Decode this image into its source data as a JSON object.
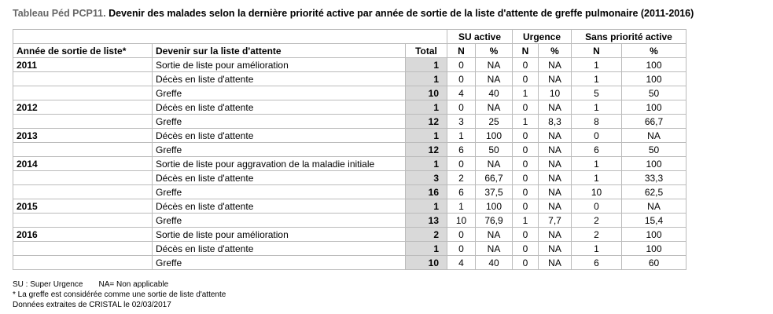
{
  "title": {
    "label": "Tableau Péd PCP11.",
    "text": "Devenir des malades selon la dernière priorité active par année de sortie de la liste d'attente de greffe pulmonaire (2011-2016)"
  },
  "table": {
    "groups": [
      "SU active",
      "Urgence",
      "Sans priorité active"
    ],
    "headers": [
      "Année de sortie de liste*",
      "Devenir sur la liste d'attente",
      "Total",
      "N",
      "%",
      "N",
      "%",
      "N",
      "%"
    ],
    "rows": [
      {
        "year": "2011",
        "outcome": "Sortie de liste pour amélioration",
        "cells": [
          "1",
          "0",
          "NA",
          "0",
          "NA",
          "1",
          "100"
        ]
      },
      {
        "outcome": "Décès en liste d'attente",
        "cells": [
          "1",
          "0",
          "NA",
          "0",
          "NA",
          "1",
          "100"
        ]
      },
      {
        "outcome": "Greffe",
        "cells": [
          "10",
          "4",
          "40",
          "1",
          "10",
          "5",
          "50"
        ]
      },
      {
        "year": "2012",
        "outcome": "Décès en liste d'attente",
        "cells": [
          "1",
          "0",
          "NA",
          "0",
          "NA",
          "1",
          "100"
        ]
      },
      {
        "outcome": "Greffe",
        "cells": [
          "12",
          "3",
          "25",
          "1",
          "8,3",
          "8",
          "66,7"
        ]
      },
      {
        "year": "2013",
        "outcome": "Décès en liste d'attente",
        "cells": [
          "1",
          "1",
          "100",
          "0",
          "NA",
          "0",
          "NA"
        ]
      },
      {
        "outcome": "Greffe",
        "cells": [
          "12",
          "6",
          "50",
          "0",
          "NA",
          "6",
          "50"
        ]
      },
      {
        "year": "2014",
        "outcome": "Sortie de liste pour aggravation de la maladie initiale",
        "cells": [
          "1",
          "0",
          "NA",
          "0",
          "NA",
          "1",
          "100"
        ]
      },
      {
        "outcome": "Décès en liste d'attente",
        "cells": [
          "3",
          "2",
          "66,7",
          "0",
          "NA",
          "1",
          "33,3"
        ]
      },
      {
        "outcome": "Greffe",
        "cells": [
          "16",
          "6",
          "37,5",
          "0",
          "NA",
          "10",
          "62,5"
        ]
      },
      {
        "year": "2015",
        "outcome": "Décès en liste d'attente",
        "cells": [
          "1",
          "1",
          "100",
          "0",
          "NA",
          "0",
          "NA"
        ]
      },
      {
        "outcome": "Greffe",
        "cells": [
          "13",
          "10",
          "76,9",
          "1",
          "7,7",
          "2",
          "15,4"
        ]
      },
      {
        "year": "2016",
        "outcome": "Sortie de liste pour amélioration",
        "cells": [
          "2",
          "0",
          "NA",
          "0",
          "NA",
          "2",
          "100"
        ]
      },
      {
        "outcome": "Décès en liste d'attente",
        "cells": [
          "1",
          "0",
          "NA",
          "0",
          "NA",
          "1",
          "100"
        ]
      },
      {
        "outcome": "Greffe",
        "cells": [
          "10",
          "4",
          "40",
          "0",
          "NA",
          "6",
          "60"
        ]
      }
    ]
  },
  "footnotes": {
    "abbrev_su": "SU : Super Urgence",
    "abbrev_na": "NA= Non applicable",
    "note": "* La greffe est considérée comme une sortie de liste d'attente",
    "source": "Données extraites de CRISTAL le 02/03/2017"
  }
}
